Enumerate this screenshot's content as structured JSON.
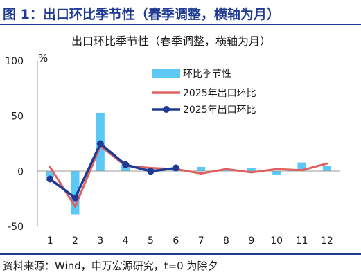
{
  "figure": {
    "title": "图 1：出口环比季节性（春季调整，横轴为月）"
  },
  "source": {
    "text": "资料来源：Wind，申万宏源研究，t=0 为除夕"
  },
  "colors": {
    "header_blue": "#1f3a93",
    "bar": "#5bc8f5",
    "red_line": "#e06060",
    "navy_line": "#1f3a93",
    "axis": "#999999"
  },
  "chart_data": {
    "type": "bar",
    "title": "出口环比季节性（春季调整，横轴为月）",
    "ylabel": "%",
    "xlabel": "",
    "ylim": [
      -50,
      100
    ],
    "yticks": [
      100,
      50,
      0,
      -50
    ],
    "categories": [
      "1",
      "2",
      "3",
      "4",
      "5",
      "6",
      "7",
      "8",
      "9",
      "10",
      "11",
      "12"
    ],
    "grid": false,
    "legend_position": "top-right",
    "series": [
      {
        "name": "环比季节性",
        "type": "bar",
        "color": "#5bc8f5",
        "values": [
          -5,
          -39,
          53,
          6,
          3,
          3,
          4,
          1,
          3,
          -3,
          8,
          5
        ]
      },
      {
        "name": "2025年出口环比",
        "type": "line",
        "color": "#e06060",
        "values": [
          4,
          -32,
          23,
          5,
          3,
          2,
          -2,
          2,
          -1,
          2,
          1,
          7
        ]
      },
      {
        "name": "2025年出口环比",
        "type": "line-marker",
        "color": "#1f3a93",
        "values": [
          -7,
          -24,
          25,
          6,
          0,
          3,
          null,
          null,
          null,
          null,
          null,
          null
        ]
      }
    ]
  }
}
